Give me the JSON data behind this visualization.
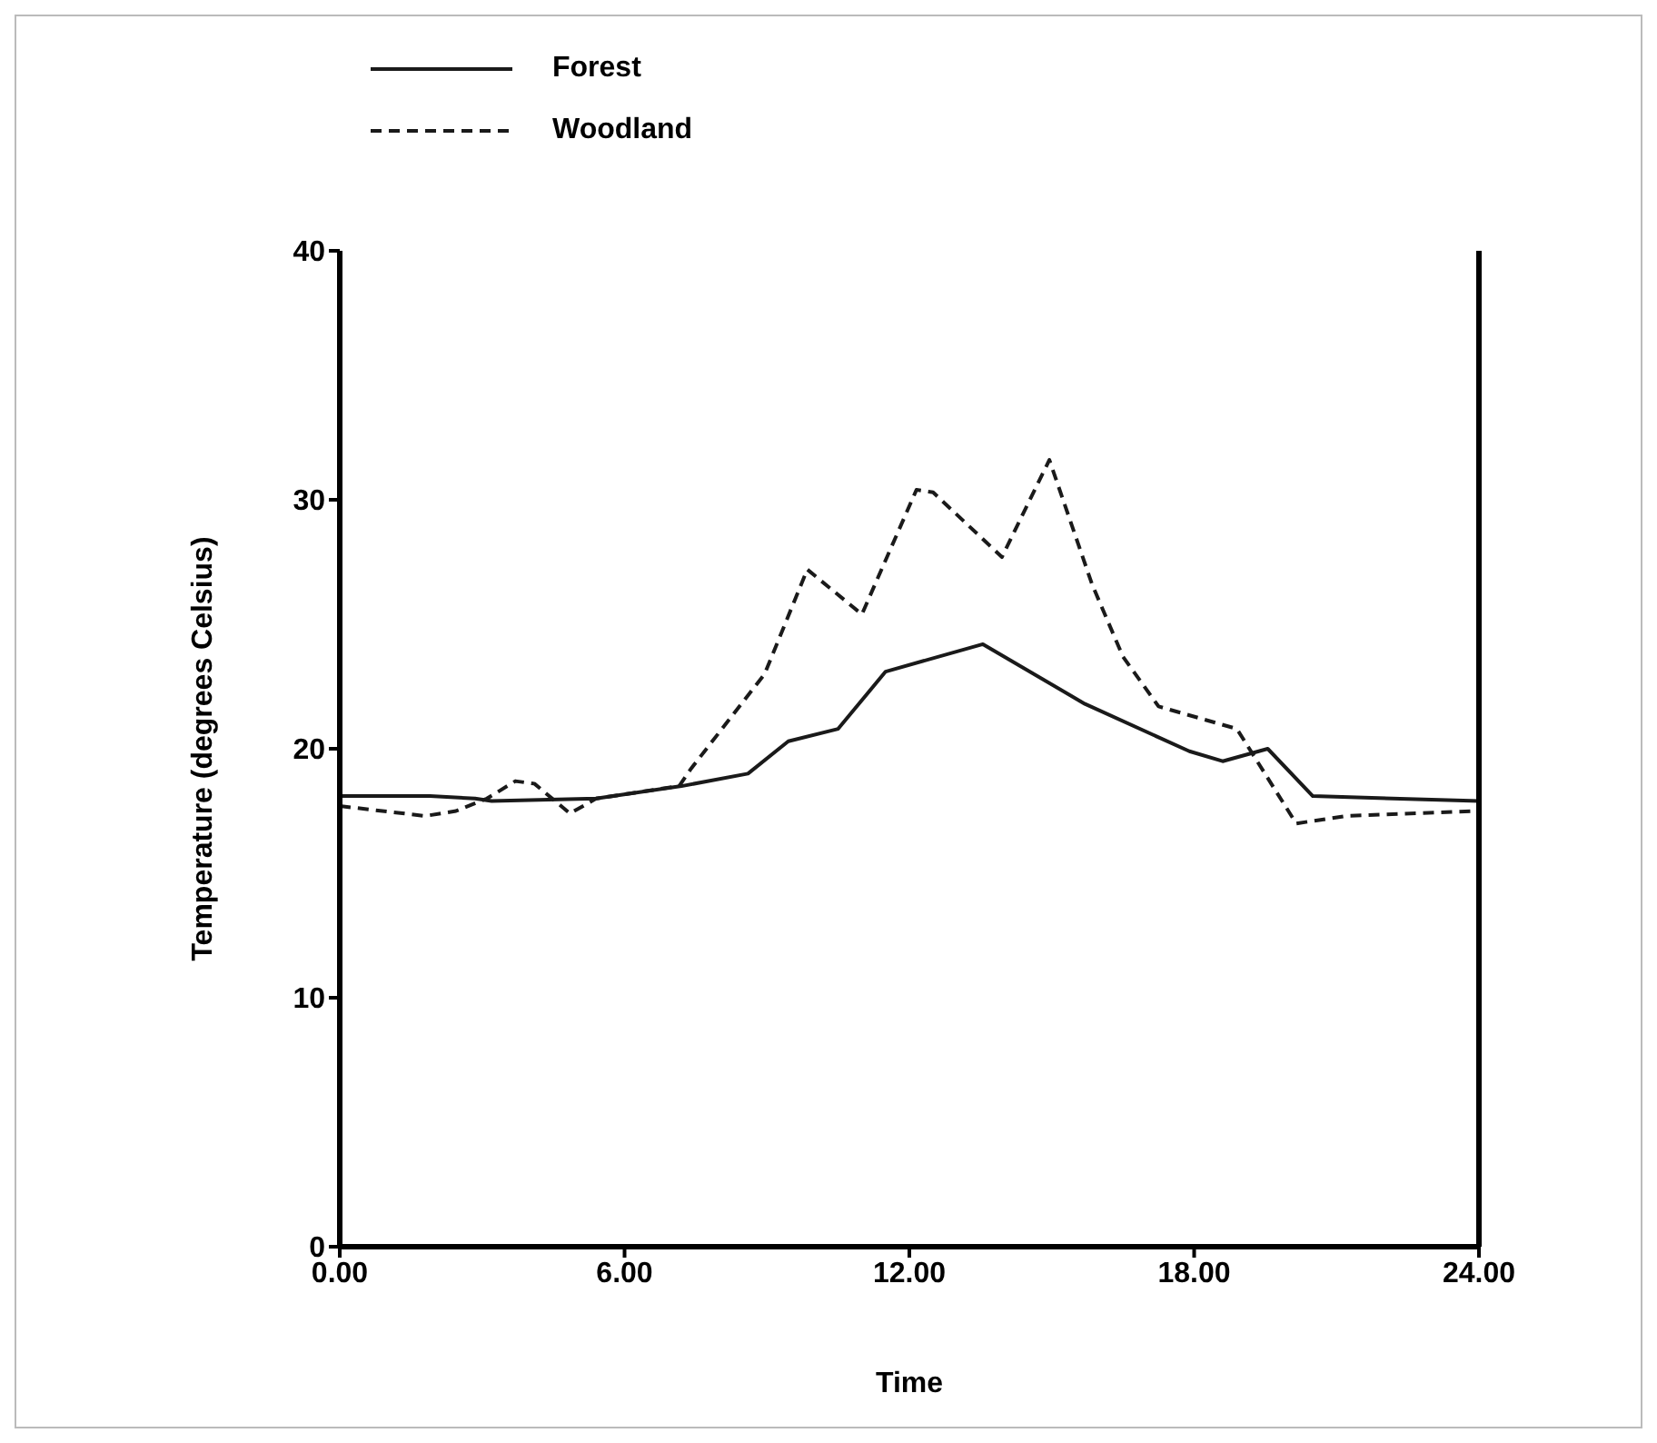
{
  "chart_data": {
    "type": "line",
    "xlabel": "Time",
    "ylabel": "Temperature (degrees Celsius)",
    "xlim": [
      0,
      24
    ],
    "xticks": [
      {
        "value": 0,
        "label": "0.00"
      },
      {
        "value": 6,
        "label": "6.00"
      },
      {
        "value": 12,
        "label": "12.00"
      },
      {
        "value": 18,
        "label": "18.00"
      },
      {
        "value": 24,
        "label": "24.00"
      }
    ],
    "ylim": [
      0,
      40
    ],
    "yticks": [
      0,
      10,
      20,
      30,
      40
    ],
    "grid": false,
    "legend": "top left",
    "marker": "none",
    "series": [
      {
        "name": "Forest",
        "color": "#1a1a1a",
        "line_style": "solid",
        "x": [
          0,
          1.9,
          2.85,
          3.2,
          5.4,
          7.2,
          8.6,
          9.45,
          10.5,
          11.5,
          13.55,
          15.7,
          17.9,
          18.6,
          19.55,
          20.5,
          24
        ],
        "values": [
          18.1,
          18.1,
          18.0,
          17.9,
          18.0,
          18.5,
          19.0,
          20.3,
          20.8,
          23.1,
          24.2,
          21.8,
          19.9,
          19.5,
          20.0,
          18.1,
          17.9
        ]
      },
      {
        "name": "Woodland",
        "color": "#1a1a1a",
        "line_style": "dashed",
        "x": [
          0,
          1.8,
          2.45,
          3.1,
          3.7,
          4.1,
          4.85,
          5.4,
          7.15,
          7.4,
          8.95,
          9.85,
          11.0,
          12.15,
          12.5,
          13.95,
          14.95,
          15.85,
          16.5,
          17.25,
          18.9,
          20.15,
          21.2,
          24
        ],
        "values": [
          17.7,
          17.3,
          17.5,
          18.0,
          18.7,
          18.6,
          17.4,
          18.0,
          18.5,
          19.2,
          23.0,
          27.2,
          25.4,
          30.4,
          30.3,
          27.7,
          31.6,
          26.6,
          23.7,
          21.7,
          20.8,
          17.0,
          17.3,
          17.5
        ]
      }
    ]
  }
}
